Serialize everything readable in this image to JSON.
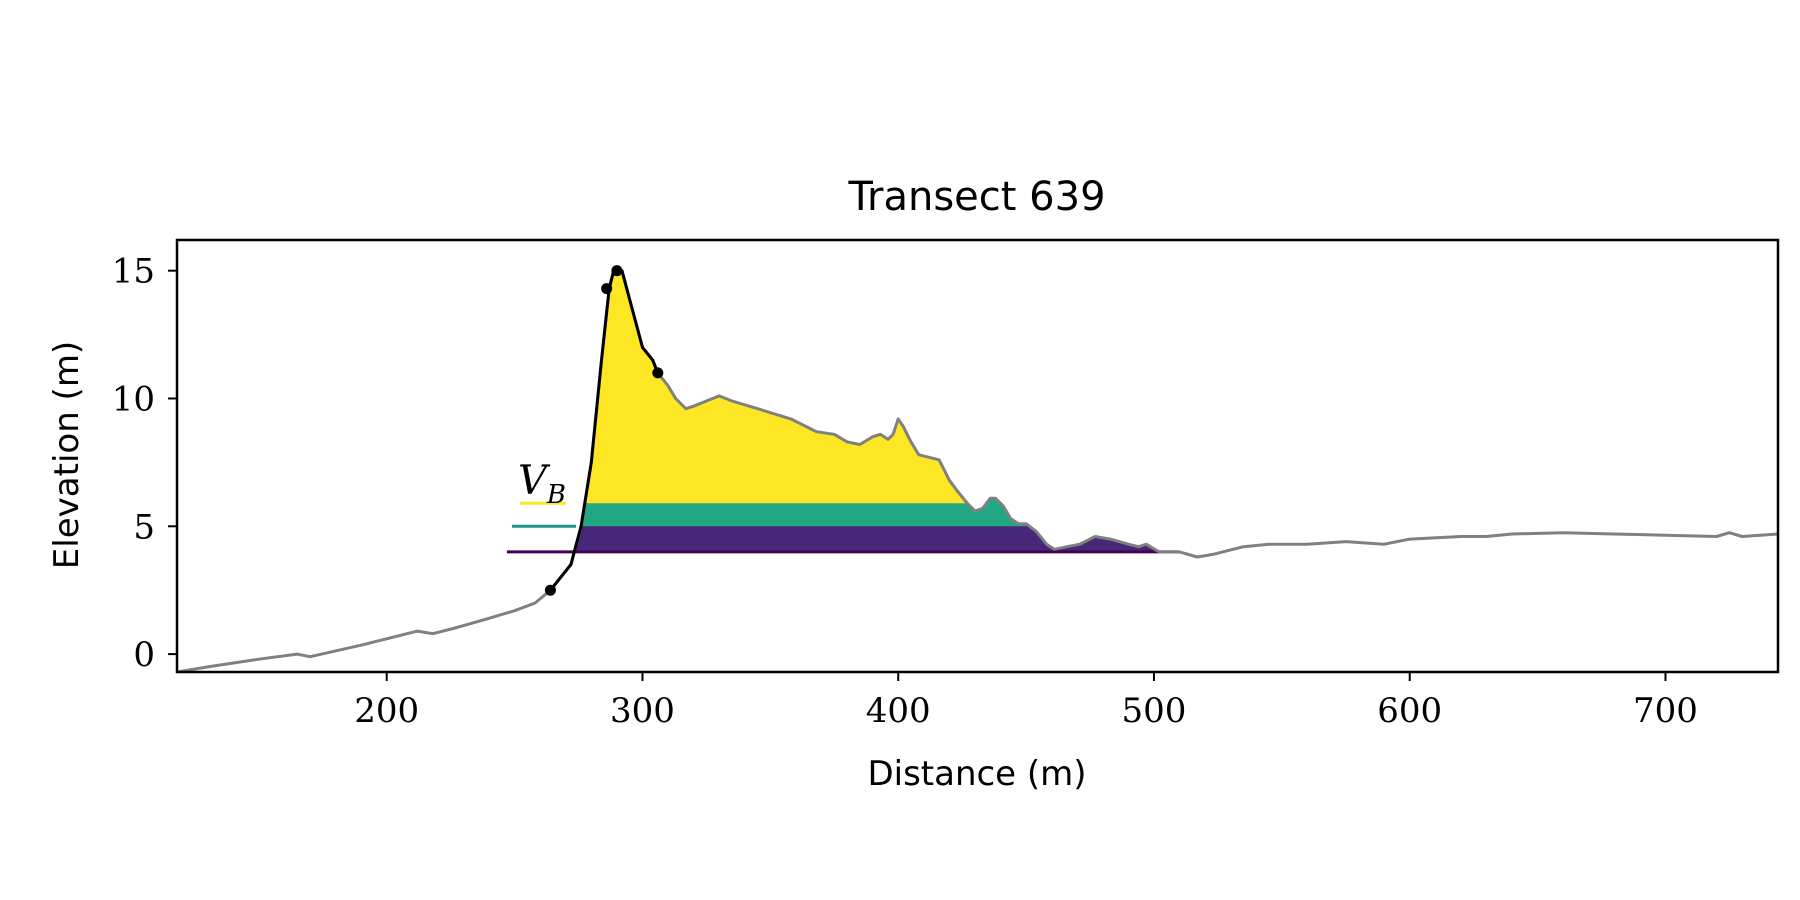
{
  "chart_data": {
    "type": "area",
    "title": "Transect 639",
    "xlabel": "Distance (m)",
    "ylabel": "Elevation (m)",
    "xlim": [
      118,
      744
    ],
    "ylim": [
      -0.7,
      16.2
    ],
    "xticks": [
      200,
      300,
      400,
      500,
      600,
      700
    ],
    "yticks": [
      0,
      5,
      10,
      15
    ],
    "grid": false,
    "annotation": {
      "text": "V",
      "subscript": "B"
    },
    "profile": {
      "color": "#808080",
      "x": [
        118,
        130,
        150,
        165,
        170,
        190,
        212,
        218,
        222,
        226,
        233,
        240,
        250,
        258,
        264,
        272,
        276,
        280,
        284,
        287,
        289,
        292,
        296,
        300,
        304,
        306,
        310,
        313,
        317,
        320,
        325,
        330,
        335,
        345,
        358,
        368,
        375,
        380,
        385,
        390,
        393,
        396,
        398,
        400,
        402,
        405,
        408,
        412,
        416,
        420,
        423,
        427,
        430,
        433,
        436,
        438,
        441,
        444,
        447,
        450,
        454,
        458,
        461,
        466,
        471,
        477,
        483,
        490,
        494,
        497,
        502,
        510,
        517,
        523,
        535,
        545,
        560,
        575,
        590,
        600,
        620,
        630,
        640,
        660,
        680,
        700,
        720,
        725,
        730,
        744
      ],
      "y": [
        -0.7,
        -0.5,
        -0.2,
        0.0,
        -0.1,
        0.35,
        0.9,
        0.8,
        0.9,
        1.0,
        1.2,
        1.4,
        1.7,
        2.0,
        2.5,
        3.5,
        5.0,
        7.5,
        11.5,
        14.3,
        15.1,
        15.0,
        13.5,
        12.0,
        11.5,
        11.0,
        10.5,
        10.0,
        9.6,
        9.7,
        9.9,
        10.1,
        9.9,
        9.6,
        9.2,
        8.7,
        8.6,
        8.3,
        8.2,
        8.5,
        8.6,
        8.4,
        8.6,
        9.2,
        8.9,
        8.3,
        7.8,
        7.7,
        7.6,
        6.8,
        6.4,
        5.9,
        5.6,
        5.7,
        6.1,
        6.1,
        5.8,
        5.3,
        5.1,
        5.1,
        4.8,
        4.3,
        4.1,
        4.2,
        4.3,
        4.6,
        4.5,
        4.3,
        4.2,
        4.3,
        4.0,
        4.0,
        3.8,
        3.9,
        4.2,
        4.3,
        4.3,
        4.4,
        4.3,
        4.5,
        4.6,
        4.6,
        4.7,
        4.75,
        4.7,
        4.65,
        4.6,
        4.75,
        4.6,
        4.7
      ]
    },
    "scarp_profile": {
      "color": "#000000",
      "x": [
        264,
        272,
        276,
        280,
        284,
        287,
        289,
        292,
        296,
        300,
        304,
        306
      ],
      "y": [
        2.5,
        3.5,
        5.0,
        7.5,
        11.5,
        14.3,
        15.1,
        15.0,
        13.5,
        12.0,
        11.5,
        11.0
      ]
    },
    "markers": [
      {
        "x": 264,
        "y": 2.5
      },
      {
        "x": 286,
        "y": 14.3
      },
      {
        "x": 290,
        "y": 15.0
      },
      {
        "x": 306,
        "y": 11.0
      }
    ],
    "volume_layers": [
      {
        "base": 5.9,
        "color": "#FDE725",
        "line_x": [
          252,
          270
        ]
      },
      {
        "base": 5.0,
        "color": "#21A784",
        "line_x": [
          249,
          274
        ]
      },
      {
        "base": 4.0,
        "color": "#472878",
        "line_x": [
          247,
          510
        ]
      }
    ],
    "level_line_colors": [
      "#FDE725",
      "#21918C",
      "#440154"
    ]
  }
}
